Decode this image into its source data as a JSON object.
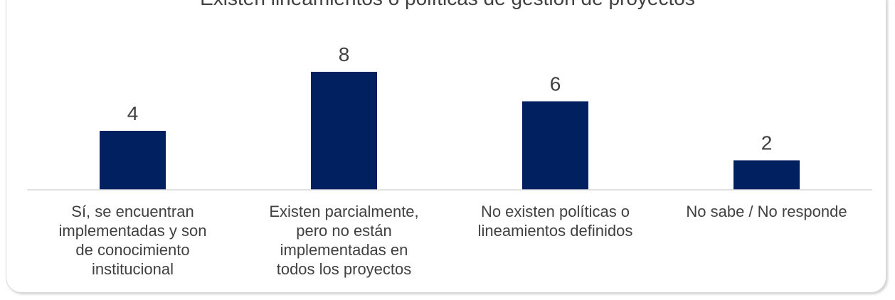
{
  "chart_data": {
    "type": "bar",
    "title": "Existen lineamientos o políticas de gestión de proyectos",
    "categories": [
      "Sí, se encuentran\nimplementadas y son\nde conocimiento\ninstitucional",
      "Existen parcialmente,\npero no están\nimplementadas en\ntodos los proyectos",
      "No existen políticas o\nlineamientos definidos",
      "No sabe / No responde"
    ],
    "values": [
      4,
      8,
      6,
      2
    ],
    "data_labels": [
      "4",
      "8",
      "6",
      "2"
    ],
    "bar_color": "#002060",
    "axis_color": "#d9d9d9",
    "ylim": [
      0,
      8
    ],
    "grid": false,
    "legend": "none",
    "xlabel": "",
    "ylabel": ""
  }
}
